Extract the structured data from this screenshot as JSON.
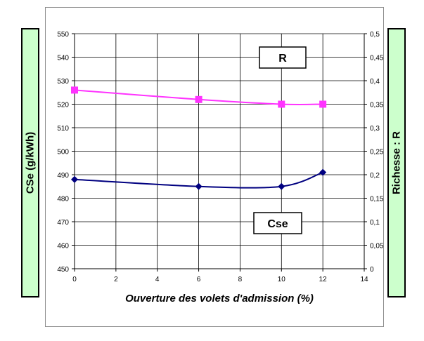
{
  "chart_data": {
    "type": "line",
    "xlabel": "Ouverture des volets d'admission (%)",
    "ylabel_left": "CSe (g/kWh)",
    "ylabel_right": "Richesse : R",
    "xlim": [
      0,
      14
    ],
    "x_ticks": [
      "0",
      "2",
      "4",
      "6",
      "8",
      "10",
      "12",
      "14"
    ],
    "ylim_left": [
      450,
      550
    ],
    "y_ticks_left": [
      "450",
      "460",
      "470",
      "480",
      "490",
      "500",
      "510",
      "520",
      "530",
      "540",
      "550"
    ],
    "ylim_right": [
      0,
      0.5
    ],
    "y_ticks_right": [
      "0",
      "0,05",
      "0,1",
      "0,15",
      "0,2",
      "0,25",
      "0,3",
      "0,35",
      "0,4",
      "0,45",
      "0,5"
    ],
    "grid": true,
    "series": [
      {
        "name": "R",
        "axis": "right",
        "marker": "square",
        "color": "#ff33ff",
        "x": [
          0,
          6,
          10,
          12
        ],
        "y": [
          0.38,
          0.36,
          0.35,
          0.35
        ]
      },
      {
        "name": "Cse",
        "axis": "left",
        "marker": "diamond",
        "color": "#000080",
        "x": [
          0,
          6,
          10,
          12
        ],
        "y": [
          488,
          485,
          485,
          491
        ]
      }
    ]
  }
}
